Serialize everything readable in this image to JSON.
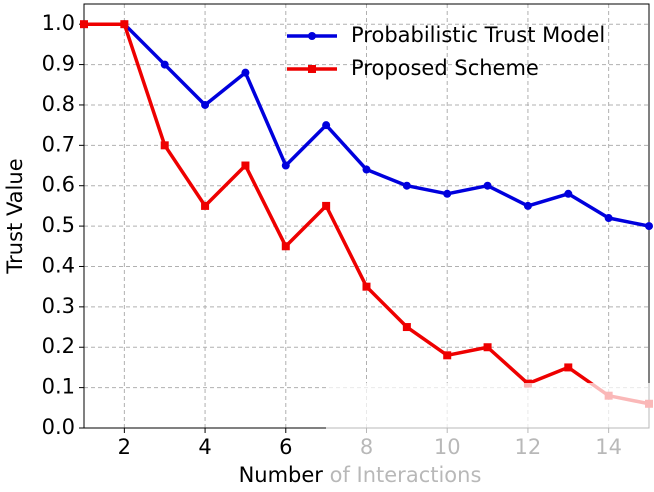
{
  "chart_data": {
    "type": "line",
    "x_label": "Number of Interactions",
    "y_label": "Trust Value",
    "x": [
      1,
      2,
      3,
      4,
      5,
      6,
      7,
      8,
      9,
      10,
      11,
      12,
      13,
      14,
      15
    ],
    "series": [
      {
        "name": "Probabilistic Trust Model",
        "color": "#0000dd",
        "marker": "circle",
        "values": [
          1.0,
          1.0,
          0.9,
          0.8,
          0.88,
          0.65,
          0.75,
          0.64,
          0.6,
          0.58,
          0.6,
          0.55,
          0.58,
          0.52,
          0.5
        ]
      },
      {
        "name": "Proposed Scheme",
        "color": "#ee0000",
        "marker": "square",
        "values": [
          1.0,
          1.0,
          0.7,
          0.55,
          0.65,
          0.45,
          0.55,
          0.35,
          0.25,
          0.18,
          0.2,
          0.11,
          0.15,
          0.08,
          0.06
        ]
      }
    ],
    "xlim": [
      1,
      15
    ],
    "ylim": [
      0,
      1.05
    ],
    "xticks": [
      2,
      4,
      6,
      8,
      10,
      12,
      14
    ],
    "yticks": [
      {
        "value": 0,
        "label": "0.0"
      },
      0.1,
      0.2,
      0.3,
      0.4,
      0.5,
      0.6,
      0.7,
      0.8,
      0.9,
      {
        "value": 1,
        "label": "1.0"
      }
    ],
    "grid": true,
    "legend": "upper right"
  }
}
